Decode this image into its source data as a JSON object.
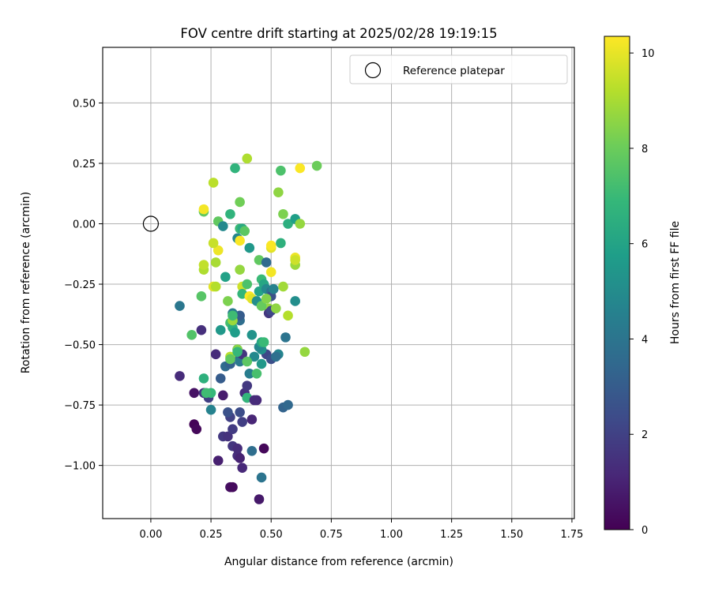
{
  "chart_data": {
    "type": "scatter",
    "title": "FOV centre drift starting at 2025/02/28 19:19:15",
    "xlabel": "Angular distance from reference (arcmin)",
    "ylabel": "Rotation from reference (arcmin)",
    "xlim": [
      -0.2,
      1.76
    ],
    "ylim": [
      -1.22,
      0.73
    ],
    "x_ticks": [
      0.0,
      0.25,
      0.5,
      0.75,
      1.0,
      1.25,
      1.5,
      1.75
    ],
    "x_tick_labels": [
      "0.00",
      "0.25",
      "0.50",
      "0.75",
      "1.00",
      "1.25",
      "1.50",
      "1.75"
    ],
    "y_ticks": [
      0.5,
      0.25,
      0.0,
      -0.25,
      -0.5,
      -0.75,
      -1.0
    ],
    "y_tick_labels": [
      "0.50",
      "0.25",
      "0.00",
      "−0.25",
      "−0.50",
      "−0.75",
      "−1.00"
    ],
    "grid": true,
    "legend": {
      "placement": "top-right",
      "entries": [
        {
          "label": "Reference platepar",
          "marker": "open-circle"
        }
      ]
    },
    "reference_point": {
      "x": 0.0,
      "y": 0.0,
      "label": "Reference platepar"
    },
    "colorbar": {
      "label": "Hours from first FF file",
      "colormap": "viridis",
      "range": [
        0,
        10.35
      ],
      "ticks": [
        0,
        2,
        4,
        6,
        8,
        10
      ],
      "tick_labels": [
        "0",
        "2",
        "4",
        "6",
        "8",
        "10"
      ]
    },
    "points_columns": [
      "x",
      "y",
      "hours"
    ],
    "points": [
      [
        0.47,
        -0.93,
        0.2
      ],
      [
        0.45,
        -1.14,
        0.7
      ],
      [
        0.33,
        -1.09,
        0.4
      ],
      [
        0.34,
        -1.09,
        0.3
      ],
      [
        0.28,
        -0.98,
        0.9
      ],
      [
        0.38,
        -1.01,
        1.2
      ],
      [
        0.36,
        -0.96,
        1.4
      ],
      [
        0.37,
        -0.97,
        1.0
      ],
      [
        0.34,
        -0.92,
        1.6
      ],
      [
        0.36,
        -0.93,
        1.3
      ],
      [
        0.18,
        -0.83,
        0.1
      ],
      [
        0.19,
        -0.85,
        0.2
      ],
      [
        0.3,
        -0.88,
        1.7
      ],
      [
        0.32,
        -0.88,
        1.5
      ],
      [
        0.34,
        -0.85,
        1.8
      ],
      [
        0.33,
        -0.8,
        2.0
      ],
      [
        0.38,
        -0.82,
        1.9
      ],
      [
        0.42,
        -0.81,
        1.1
      ],
      [
        0.37,
        -0.78,
        2.4
      ],
      [
        0.32,
        -0.78,
        2.6
      ],
      [
        0.18,
        -0.7,
        0.5
      ],
      [
        0.22,
        -0.7,
        1.6
      ],
      [
        0.24,
        -0.72,
        1.9
      ],
      [
        0.3,
        -0.71,
        0.8
      ],
      [
        0.39,
        -0.7,
        1.4
      ],
      [
        0.4,
        -0.72,
        1.8
      ],
      [
        0.44,
        -0.73,
        1.2
      ],
      [
        0.12,
        -0.63,
        1.3
      ],
      [
        0.29,
        -0.64,
        3.0
      ],
      [
        0.4,
        -0.67,
        1.7
      ],
      [
        0.31,
        -0.59,
        3.6
      ],
      [
        0.33,
        -0.58,
        3.2
      ],
      [
        0.27,
        -0.54,
        1.3
      ],
      [
        0.35,
        -0.55,
        3.9
      ],
      [
        0.37,
        -0.57,
        4.2
      ],
      [
        0.38,
        -0.54,
        1.6
      ],
      [
        0.36,
        -0.52,
        3.4
      ],
      [
        0.41,
        -0.62,
        4.4
      ],
      [
        0.43,
        -0.55,
        4.9
      ],
      [
        0.42,
        -0.94,
        3.7
      ],
      [
        0.46,
        -1.05,
        4.0
      ],
      [
        0.25,
        -0.77,
        4.6
      ],
      [
        0.55,
        -0.76,
        3.3
      ],
      [
        0.57,
        -0.75,
        3.5
      ],
      [
        0.48,
        -0.54,
        2.2
      ],
      [
        0.5,
        -0.56,
        2.5
      ],
      [
        0.53,
        -0.54,
        4.7
      ],
      [
        0.52,
        -0.55,
        3.8
      ],
      [
        0.46,
        -0.52,
        5.2
      ],
      [
        0.45,
        -0.51,
        4.8
      ],
      [
        0.56,
        -0.47,
        4.0
      ],
      [
        0.4,
        -0.72,
        6.8
      ],
      [
        0.22,
        -0.64,
        6.6
      ],
      [
        0.25,
        -0.7,
        6.9
      ],
      [
        0.12,
        -0.34,
        4.1
      ],
      [
        0.21,
        -0.44,
        1.4
      ],
      [
        0.29,
        -0.44,
        5.5
      ],
      [
        0.33,
        -0.41,
        7.2
      ],
      [
        0.34,
        -0.43,
        6.5
      ],
      [
        0.35,
        -0.45,
        5.7
      ],
      [
        0.37,
        -0.4,
        3.7
      ],
      [
        0.37,
        -0.38,
        3.0
      ],
      [
        0.34,
        -0.37,
        4.3
      ],
      [
        0.46,
        -0.49,
        6.2
      ],
      [
        0.47,
        -0.49,
        7.0
      ],
      [
        0.17,
        -0.46,
        7.5
      ],
      [
        0.21,
        -0.3,
        7.6
      ],
      [
        0.31,
        -0.22,
        5.9
      ],
      [
        0.32,
        -0.32,
        8.3
      ],
      [
        0.34,
        -0.4,
        8.8
      ],
      [
        0.34,
        -0.38,
        7.1
      ],
      [
        0.33,
        -0.55,
        9.3
      ],
      [
        0.38,
        -0.26,
        9.6
      ],
      [
        0.38,
        -0.29,
        6.8
      ],
      [
        0.4,
        -0.25,
        7.4
      ],
      [
        0.41,
        -0.3,
        10.3
      ],
      [
        0.42,
        -0.31,
        9.9
      ],
      [
        0.44,
        -0.32,
        5.1
      ],
      [
        0.45,
        -0.28,
        6.0
      ],
      [
        0.46,
        -0.23,
        7.0
      ],
      [
        0.47,
        -0.25,
        6.1
      ],
      [
        0.48,
        -0.27,
        4.9
      ],
      [
        0.49,
        -0.35,
        8.7
      ],
      [
        0.5,
        -0.28,
        3.9
      ],
      [
        0.5,
        -0.3,
        2.6
      ],
      [
        0.49,
        -0.37,
        1.7
      ],
      [
        0.5,
        -0.36,
        2.2
      ],
      [
        0.46,
        -0.34,
        7.9
      ],
      [
        0.48,
        -0.31,
        8.4
      ],
      [
        0.51,
        -0.27,
        4.6
      ],
      [
        0.52,
        -0.35,
        8.6
      ],
      [
        0.55,
        -0.26,
        8.9
      ],
      [
        0.57,
        -0.38,
        9.2
      ],
      [
        0.6,
        -0.32,
        5.1
      ],
      [
        0.64,
        -0.53,
        8.7
      ],
      [
        0.26,
        -0.26,
        9.9
      ],
      [
        0.27,
        -0.26,
        9.2
      ],
      [
        0.22,
        -0.19,
        9.1
      ],
      [
        0.22,
        -0.17,
        9.4
      ],
      [
        0.27,
        -0.16,
        9.0
      ],
      [
        0.28,
        -0.11,
        10.1
      ],
      [
        0.26,
        -0.08,
        9.5
      ],
      [
        0.37,
        -0.19,
        8.7
      ],
      [
        0.36,
        -0.06,
        4.8
      ],
      [
        0.37,
        -0.07,
        10.3
      ],
      [
        0.41,
        -0.1,
        5.5
      ],
      [
        0.45,
        -0.15,
        7.8
      ],
      [
        0.48,
        -0.16,
        3.6
      ],
      [
        0.5,
        -0.1,
        9.9
      ],
      [
        0.5,
        -0.09,
        10.3
      ],
      [
        0.5,
        -0.2,
        10.2
      ],
      [
        0.54,
        -0.08,
        6.6
      ],
      [
        0.6,
        -0.14,
        10.1
      ],
      [
        0.6,
        -0.17,
        8.8
      ],
      [
        0.22,
        0.05,
        7.8
      ],
      [
        0.22,
        0.06,
        10.2
      ],
      [
        0.28,
        0.01,
        7.8
      ],
      [
        0.3,
        -0.01,
        4.9
      ],
      [
        0.33,
        0.04,
        6.7
      ],
      [
        0.37,
        -0.02,
        7.0
      ],
      [
        0.38,
        -0.02,
        6.3
      ],
      [
        0.39,
        -0.03,
        7.7
      ],
      [
        0.37,
        0.09,
        8.1
      ],
      [
        0.26,
        0.17,
        9.3
      ],
      [
        0.35,
        0.23,
        6.7
      ],
      [
        0.4,
        0.27,
        9.1
      ],
      [
        0.53,
        0.13,
        8.6
      ],
      [
        0.54,
        0.22,
        7.4
      ],
      [
        0.55,
        0.04,
        8.3
      ],
      [
        0.57,
        0.0,
        6.5
      ],
      [
        0.6,
        0.02,
        5.8
      ],
      [
        0.62,
        0.0,
        8.7
      ],
      [
        0.62,
        0.23,
        10.3
      ],
      [
        0.69,
        0.24,
        8.0
      ],
      [
        0.6,
        -0.15,
        9.6
      ],
      [
        0.42,
        -0.46,
        5.3
      ],
      [
        0.44,
        -0.62,
        7.3
      ],
      [
        0.46,
        -0.58,
        5.5
      ],
      [
        0.4,
        -0.57,
        7.7
      ],
      [
        0.36,
        -0.52,
        8.5
      ],
      [
        0.36,
        -0.53,
        6.9
      ],
      [
        0.43,
        -0.73,
        1.3
      ],
      [
        0.23,
        -0.7,
        7.1
      ],
      [
        0.33,
        -0.56,
        7.8
      ]
    ]
  }
}
